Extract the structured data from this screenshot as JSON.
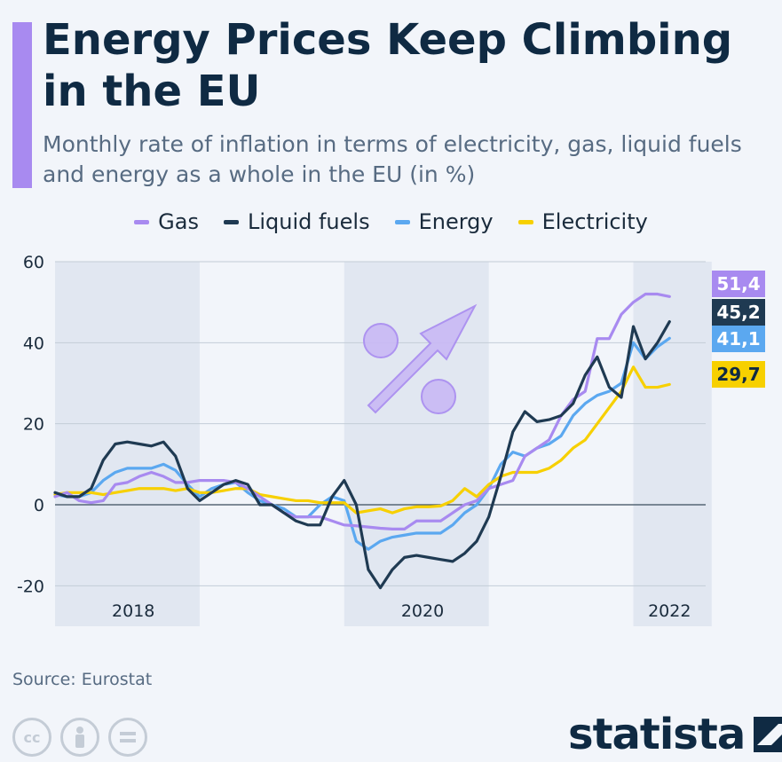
{
  "title": "Energy Prices Keep Climbing in the EU",
  "subtitle": "Monthly rate of inflation in terms of electricity, gas, liquid fuels and energy as a whole in the EU (in %)",
  "source": "Source: Eurostat",
  "brand": "statista",
  "icons": [
    "creative-commons-icon",
    "attribution-icon",
    "no-derivatives-icon",
    "statista-logo-icon",
    "upward-arrow-percent-icon"
  ],
  "chart_data": {
    "type": "line",
    "ylim": [
      -30,
      60
    ],
    "yticks": [
      60,
      40,
      20,
      0,
      -20
    ],
    "grid": true,
    "legend_placement": "top-center",
    "year_labels": [
      {
        "label": "2018",
        "at": 6.5
      },
      {
        "label": "2020",
        "at": 30.5
      },
      {
        "label": "2022",
        "at": 51
      }
    ],
    "shaded_bands": [
      [
        0,
        12
      ],
      [
        24,
        36
      ],
      [
        48,
        54.5
      ]
    ],
    "x_range": [
      0,
      54
    ],
    "series": [
      {
        "name": "Gas",
        "color": "#a88af0",
        "end_label": "51,4",
        "values": [
          2,
          3,
          1,
          0.5,
          1,
          5,
          5.5,
          7,
          8,
          7,
          5.5,
          5.5,
          6,
          6,
          6,
          5.5,
          4,
          2,
          0,
          -2,
          -3,
          -3,
          -3,
          -4,
          -5,
          -5.2,
          -5.5,
          -5.8,
          -6,
          -6,
          -4,
          -4,
          -4,
          -2,
          0,
          1,
          4,
          5,
          6,
          12,
          14,
          16,
          22,
          26,
          28,
          41,
          41,
          47,
          50,
          52,
          52,
          51.4
        ]
      },
      {
        "name": "Liquid fuels",
        "color": "#1f3a52",
        "end_label": "45,2",
        "values": [
          3,
          2,
          2,
          4,
          11,
          15,
          15.5,
          15,
          14.5,
          15.5,
          12,
          4,
          1,
          3,
          5,
          6,
          5,
          0,
          0,
          -2,
          -4,
          -5,
          -5,
          2,
          6,
          0,
          -16,
          -20.5,
          -16,
          -13,
          -12.5,
          -13,
          -13.5,
          -14,
          -12,
          -9,
          -3,
          7,
          18,
          23,
          20.5,
          21,
          22,
          25,
          32,
          36.5,
          29,
          26.5,
          44,
          36,
          40,
          45.2
        ]
      },
      {
        "name": "Energy",
        "color": "#5ba8f0",
        "end_label": "41,1",
        "values": [
          2.5,
          2,
          2,
          3,
          6,
          8,
          9,
          9,
          9,
          10,
          8.5,
          5,
          2,
          4,
          5,
          5.5,
          3,
          1,
          0,
          -1,
          -3,
          -3,
          0,
          2,
          1,
          -9,
          -11,
          -9,
          -8,
          -7.5,
          -7,
          -7,
          -7,
          -5,
          -2,
          0,
          4,
          10,
          13,
          12,
          14,
          15,
          17,
          22,
          25,
          27,
          28,
          30,
          40,
          36,
          39,
          41.1
        ]
      },
      {
        "name": "Electricity",
        "color": "#f7d000",
        "end_label": "29,7",
        "values": [
          2.5,
          3,
          3,
          3,
          2.5,
          3,
          3.5,
          4,
          4,
          4,
          3.5,
          4,
          3,
          3,
          3.5,
          4,
          4,
          2.5,
          2,
          1.5,
          1,
          1,
          0.5,
          0.5,
          0.5,
          -2,
          -1.5,
          -1,
          -2,
          -1,
          -0.5,
          -0.5,
          -0.3,
          1,
          4,
          2,
          5,
          7,
          8,
          8,
          8,
          9,
          11,
          14,
          16,
          20,
          24,
          28,
          34,
          29,
          29,
          29.7
        ]
      }
    ]
  }
}
